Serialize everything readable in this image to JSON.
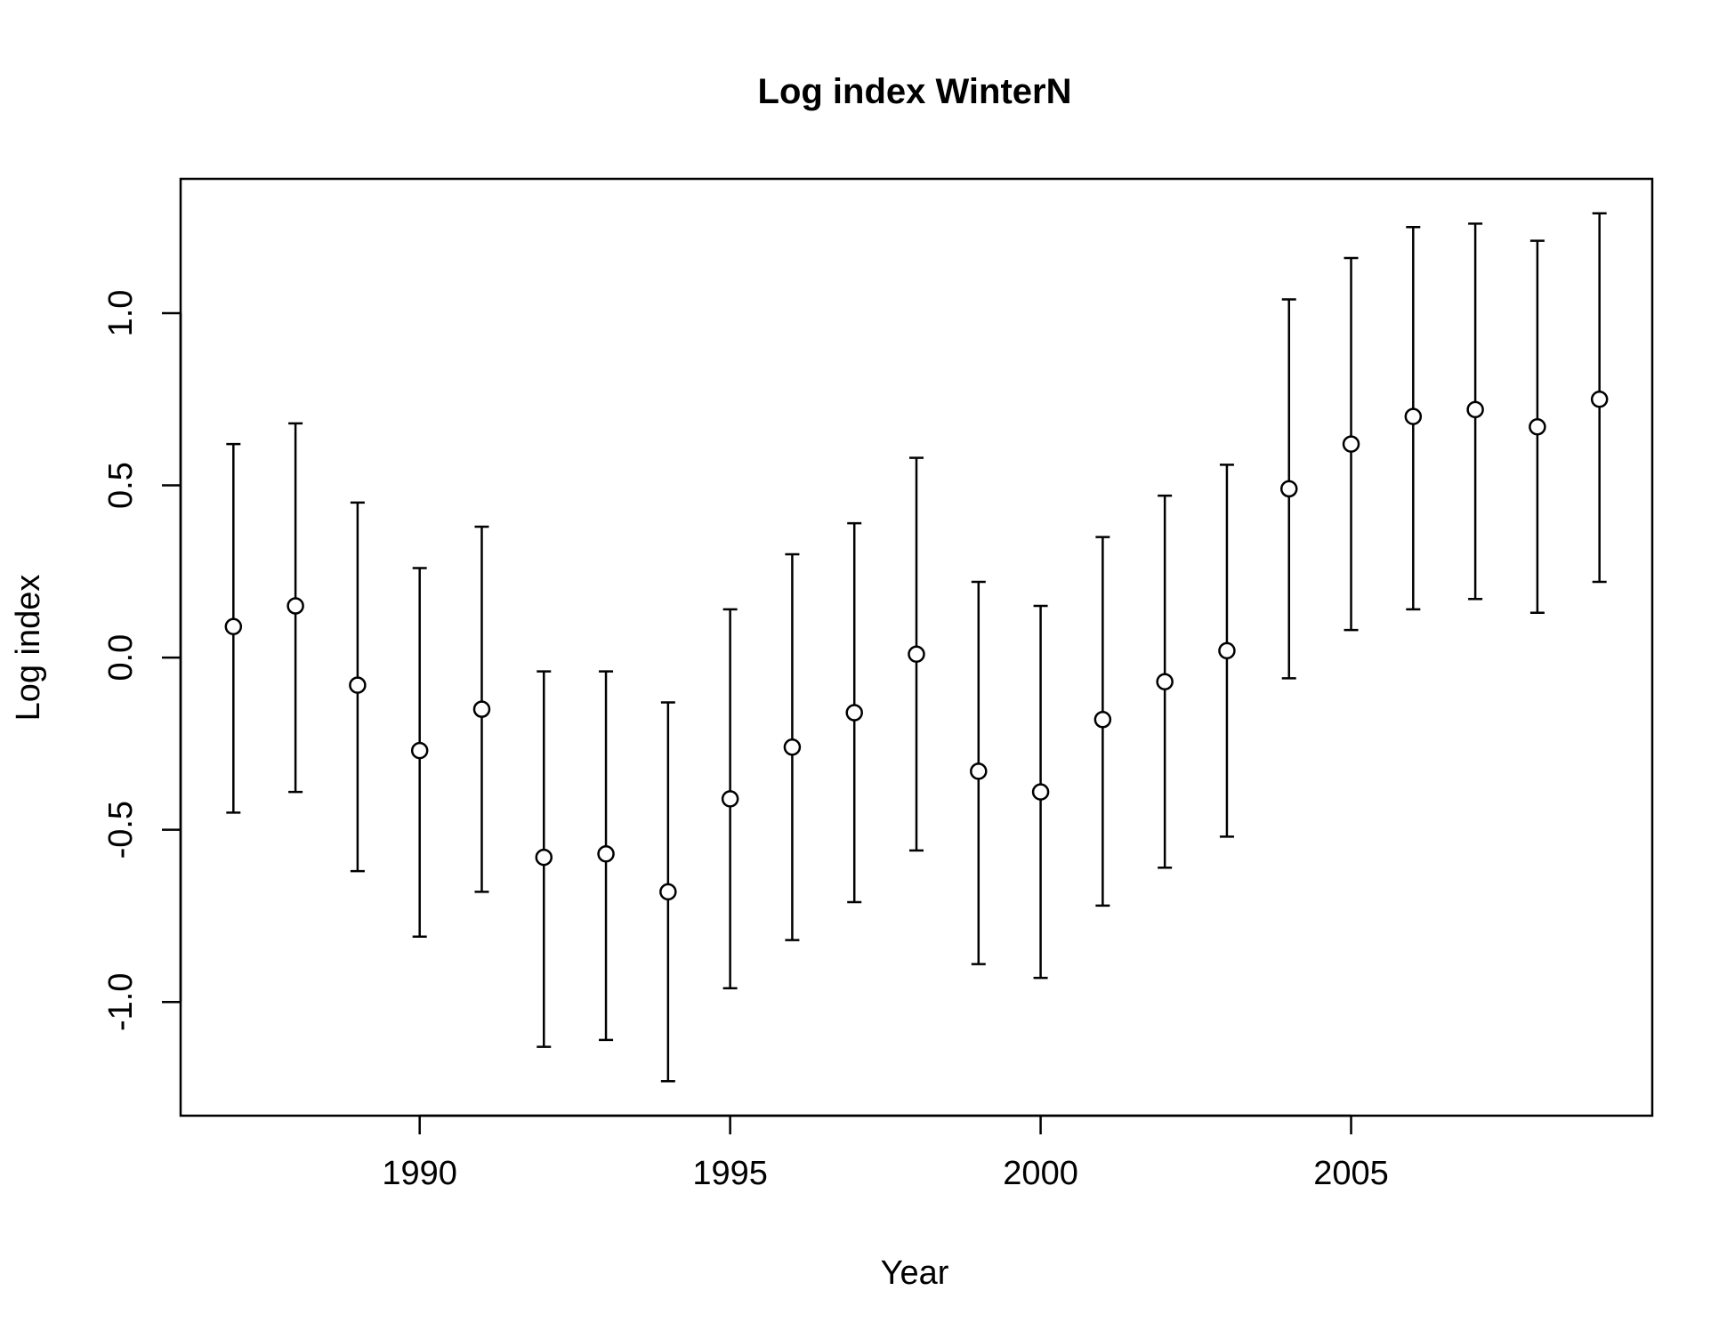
{
  "chart_data": {
    "type": "scatter",
    "title": "Log index WinterN",
    "xlabel": "Year",
    "ylabel": "Log index",
    "xlim": [
      1986.15,
      2009.85
    ],
    "ylim": [
      -1.33,
      1.39
    ],
    "x_ticks": [
      1990,
      1995,
      2000,
      2005
    ],
    "x_tick_labels": [
      "1990",
      "1995",
      "2000",
      "2005"
    ],
    "y_ticks": [
      -1.0,
      -0.5,
      0.0,
      0.5,
      1.0
    ],
    "y_tick_labels": [
      "-1.0",
      "-0.5",
      "0.0",
      "0.5",
      "1.0"
    ],
    "grid": false,
    "legend": "none",
    "series": [
      {
        "x": [
          1987,
          1988,
          1989,
          1990,
          1991,
          1992,
          1993,
          1994,
          1995,
          1996,
          1997,
          1998,
          1999,
          2000,
          2001,
          2002,
          2003,
          2004,
          2005,
          2006,
          2007,
          2008,
          2009
        ],
        "y": [
          0.09,
          0.15,
          -0.08,
          -0.27,
          -0.15,
          -0.58,
          -0.57,
          -0.68,
          -0.41,
          -0.26,
          -0.16,
          0.01,
          -0.33,
          -0.39,
          -0.18,
          -0.07,
          0.02,
          0.49,
          0.62,
          0.7,
          0.72,
          0.67,
          0.75
        ],
        "lower": [
          -0.45,
          -0.39,
          -0.62,
          -0.81,
          -0.68,
          -1.13,
          -1.11,
          -1.23,
          -0.96,
          -0.82,
          -0.71,
          -0.56,
          -0.89,
          -0.93,
          -0.72,
          -0.61,
          -0.52,
          -0.06,
          0.08,
          0.14,
          0.17,
          0.13,
          0.22
        ],
        "upper": [
          0.62,
          0.68,
          0.45,
          0.26,
          0.38,
          -0.04,
          -0.04,
          -0.13,
          0.14,
          0.3,
          0.39,
          0.58,
          0.22,
          0.15,
          0.35,
          0.47,
          0.56,
          1.04,
          1.16,
          1.25,
          1.26,
          1.21,
          1.29
        ]
      }
    ]
  }
}
